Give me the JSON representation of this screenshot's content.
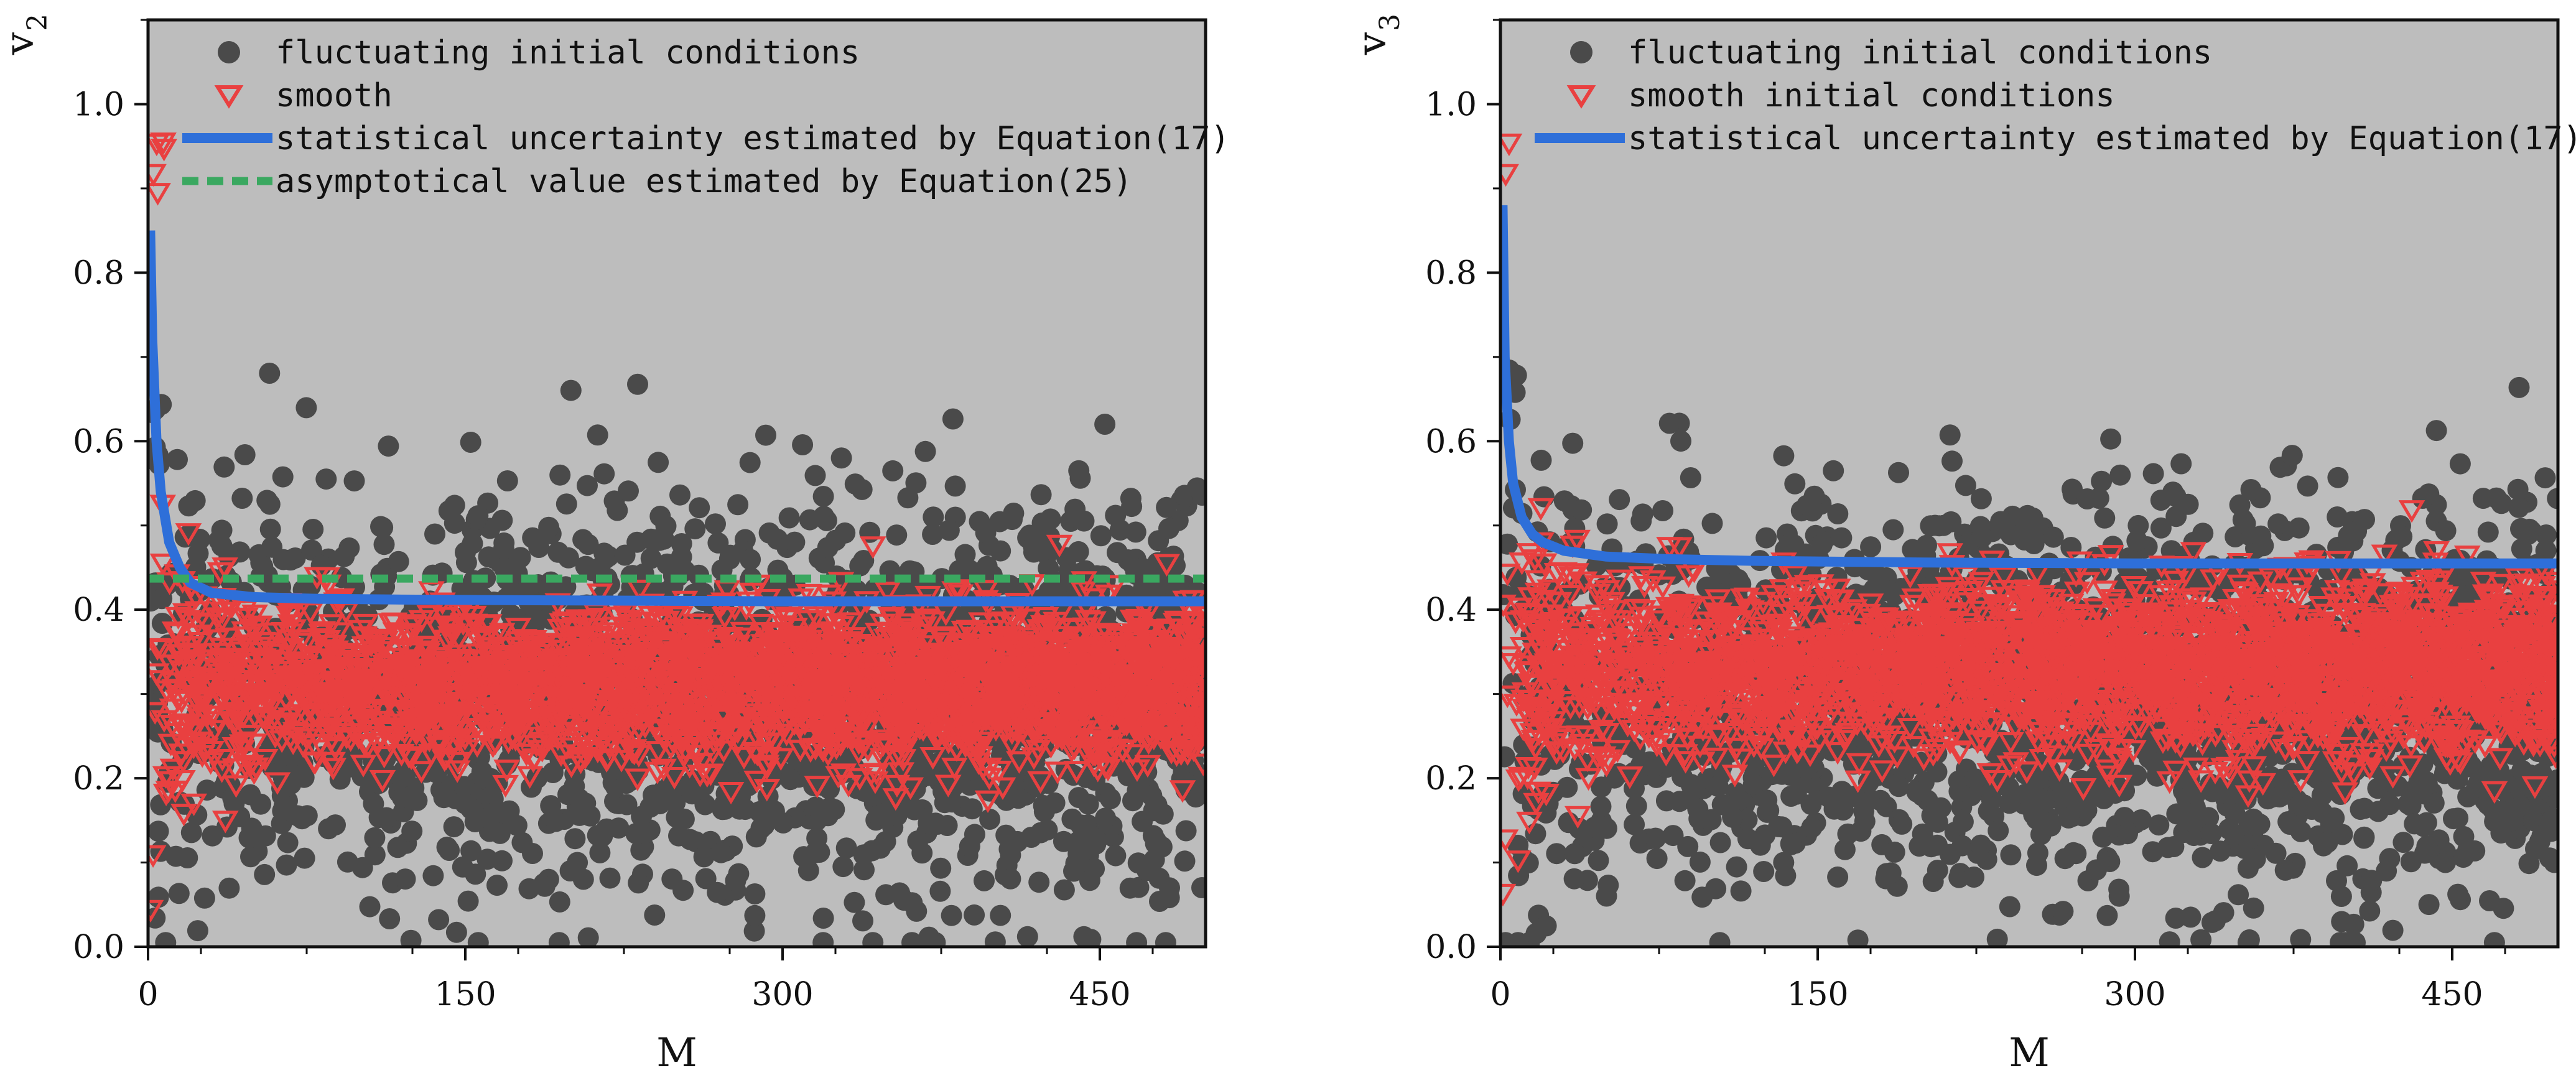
{
  "chart_data": [
    {
      "type": "scatter",
      "ylabel": "v",
      "ylabel_sub": "2",
      "xlabel": "M",
      "xlim": [
        0,
        500
      ],
      "ylim": [
        0,
        1.1
      ],
      "xticks": [
        0,
        150,
        300,
        450
      ],
      "yticks": [
        "0.0",
        "0.2",
        "0.4",
        "0.6",
        "0.8",
        "1.0"
      ],
      "legend": [
        {
          "label": "fluctuating initial conditions",
          "kind": "circle",
          "color": "#4a4a4a"
        },
        {
          "label": "smooth",
          "kind": "triangle",
          "color": "#e94040"
        },
        {
          "label": "statistical uncertainty estimated by Equation(17)",
          "kind": "line",
          "color": "#2e6fd9"
        },
        {
          "label": "asymptotical value estimated by Equation(25)",
          "kind": "dashed",
          "color": "#3aa860"
        }
      ],
      "series": [
        {
          "name": "fluctuating initial conditions",
          "kind": "circle",
          "color": "#4a4a4a",
          "x_range": [
            1,
            500
          ],
          "band_center": 0.3,
          "band_spread": [
            0.28,
            0.2
          ],
          "extreme_max": 0.72,
          "count": 2200
        },
        {
          "name": "smooth",
          "kind": "triangle",
          "color": "#e94040",
          "x_range": [
            1,
            500
          ],
          "band_center": 0.31,
          "band_spread": [
            0.2,
            0.08
          ],
          "extreme_max": 1.0,
          "count": 2800
        },
        {
          "name": "statistical uncertainty estimated by Equation(17)",
          "kind": "line",
          "color": "#2e6fd9",
          "x": [
            1,
            2,
            4,
            6,
            10,
            15,
            20,
            30,
            50,
            80,
            120,
            200,
            300,
            400,
            500
          ],
          "y": [
            0.85,
            0.72,
            0.6,
            0.54,
            0.48,
            0.45,
            0.432,
            0.42,
            0.415,
            0.413,
            0.412,
            0.411,
            0.41,
            0.41,
            0.41
          ]
        },
        {
          "name": "asymptotical value estimated by Equation(25)",
          "kind": "dashed",
          "color": "#3aa860",
          "x": [
            0,
            500
          ],
          "y": [
            0.437,
            0.437
          ]
        }
      ]
    },
    {
      "type": "scatter",
      "ylabel": "v",
      "ylabel_sub": "3",
      "xlabel": "M",
      "xlim": [
        0,
        500
      ],
      "ylim": [
        0,
        1.1
      ],
      "xticks": [
        0,
        150,
        300,
        450
      ],
      "yticks": [
        "0.0",
        "0.2",
        "0.4",
        "0.6",
        "0.8",
        "1.0"
      ],
      "legend": [
        {
          "label": "fluctuating initial conditions",
          "kind": "circle",
          "color": "#4a4a4a"
        },
        {
          "label": "smooth initial conditions",
          "kind": "triangle",
          "color": "#e94040"
        },
        {
          "label": "statistical uncertainty estimated by Equation(17)",
          "kind": "line",
          "color": "#2e6fd9"
        }
      ],
      "series": [
        {
          "name": "fluctuating initial conditions",
          "kind": "circle",
          "color": "#4a4a4a",
          "x_range": [
            1,
            500
          ],
          "band_center": 0.3,
          "band_spread": [
            0.3,
            0.2
          ],
          "extreme_max": 0.73,
          "count": 2200
        },
        {
          "name": "smooth initial conditions",
          "kind": "triangle",
          "color": "#e94040",
          "x_range": [
            1,
            500
          ],
          "band_center": 0.33,
          "band_spread": [
            0.2,
            0.09
          ],
          "extreme_max": 1.0,
          "count": 2800
        },
        {
          "name": "statistical uncertainty estimated by Equation(17)",
          "kind": "line",
          "color": "#2e6fd9",
          "x": [
            1,
            2,
            4,
            6,
            10,
            15,
            20,
            30,
            50,
            80,
            120,
            200,
            300,
            400,
            500
          ],
          "y": [
            0.88,
            0.7,
            0.6,
            0.55,
            0.51,
            0.49,
            0.48,
            0.47,
            0.463,
            0.46,
            0.458,
            0.456,
            0.455,
            0.455,
            0.455
          ]
        }
      ]
    }
  ]
}
